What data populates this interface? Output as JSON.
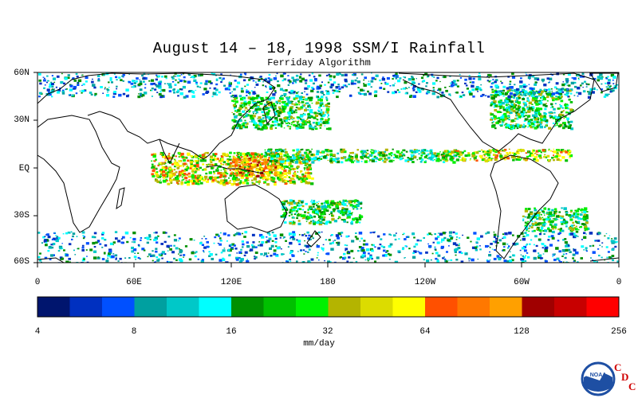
{
  "title": "August 14 – 18, 1998 SSM/I Rainfall",
  "subtitle": "Ferriday Algorithm",
  "lat_labels": [
    "60N",
    "30N",
    "EQ",
    "30S",
    "60S"
  ],
  "lon_labels": [
    "0",
    "60E",
    "120E",
    "180",
    "120W",
    "60W",
    "0"
  ],
  "colorbar": {
    "units": "mm/day",
    "tick_labels": [
      "4",
      "8",
      "16",
      "32",
      "64",
      "128",
      "256"
    ],
    "colors": [
      "#00156e",
      "#0030c0",
      "#0050ff",
      "#00a0a0",
      "#00c8c8",
      "#00ffff",
      "#009000",
      "#00c000",
      "#00f000",
      "#b4b400",
      "#dcdc00",
      "#ffff00",
      "#ff5000",
      "#ff7800",
      "#ffa000",
      "#a00000",
      "#c80000",
      "#ff0000"
    ]
  },
  "logo": {
    "noaa_text": "NOAA",
    "cdc_letters": [
      "C",
      "D",
      "C"
    ],
    "ring_color": "#1e4fa3"
  },
  "chart_data": {
    "type": "heatmap",
    "title": "August 14 – 18, 1998 SSM/I Rainfall",
    "subtitle": "Ferriday Algorithm",
    "lon_range": [
      0,
      360
    ],
    "lat_range": [
      -60,
      60
    ],
    "colorbar_levels": [
      4,
      8,
      16,
      32,
      64,
      128,
      256
    ],
    "colorbar_units": "mm/day",
    "rain_bands": [
      {
        "lon": [
          70,
          170
        ],
        "lat": [
          -10,
          10
        ],
        "level": 32
      },
      {
        "lon": [
          120,
          150
        ],
        "lat": [
          -5,
          8
        ],
        "level": 64
      },
      {
        "lon": [
          140,
          260
        ],
        "lat": [
          4,
          12
        ],
        "level": 16
      },
      {
        "lon": [
          250,
          330
        ],
        "lat": [
          5,
          12
        ],
        "level": 32
      },
      {
        "lon": [
          120,
          180
        ],
        "lat": [
          25,
          45
        ],
        "level": 16
      },
      {
        "lon": [
          280,
          330
        ],
        "lat": [
          25,
          50
        ],
        "level": 16
      },
      {
        "lon": [
          0,
          360
        ],
        "lat": [
          -60,
          -40
        ],
        "level": 8
      },
      {
        "lon": [
          150,
          200
        ],
        "lat": [
          -35,
          -20
        ],
        "level": 16
      },
      {
        "lon": [
          0,
          360
        ],
        "lat": [
          45,
          60
        ],
        "level": 8
      },
      {
        "lon": [
          300,
          340
        ],
        "lat": [
          -40,
          -25
        ],
        "level": 16
      }
    ]
  }
}
